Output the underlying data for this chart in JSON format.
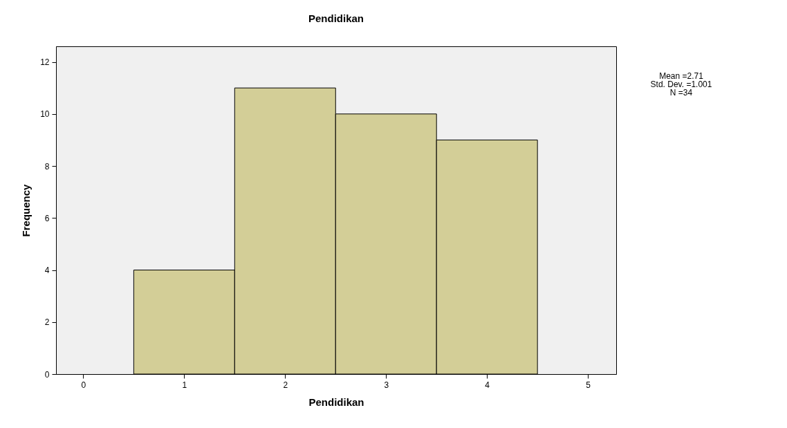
{
  "chart_data": {
    "type": "histogram",
    "title": "Pendidikan",
    "xlabel": "Pendidikan",
    "ylabel": "Frequency",
    "bins": [
      0.5,
      1.5,
      2.5,
      3.5,
      4.5
    ],
    "values": [
      4,
      11,
      10,
      9
    ],
    "color": "#d3ce97",
    "xlim": [
      -0.27,
      5.28
    ],
    "xticks": [
      0,
      1,
      2,
      3,
      4,
      5
    ],
    "ylim": [
      0,
      12.6
    ],
    "yticks": [
      0,
      2,
      4,
      6,
      8,
      10,
      12
    ],
    "annotations": [
      "Mean =2.71",
      "Std. Dev. =1.001",
      "N =34"
    ]
  }
}
